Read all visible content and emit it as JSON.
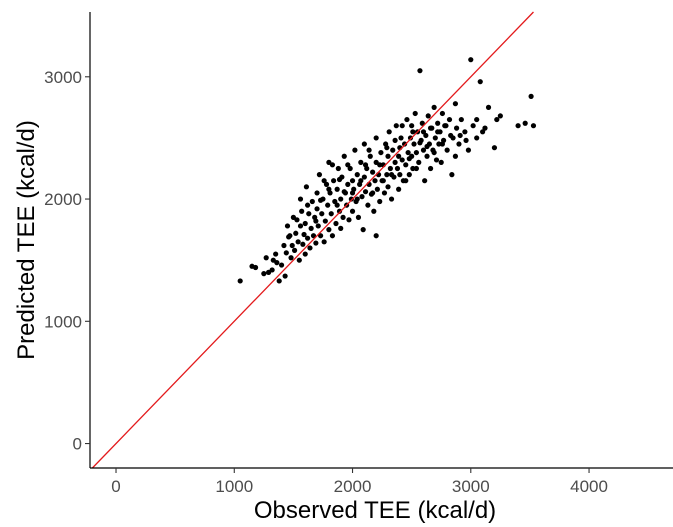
{
  "chart_data": {
    "type": "scatter",
    "title": "",
    "xlabel": "Observed TEE (kcal/d)",
    "ylabel": "Predicted TEE (kcal/d)",
    "xlim": [
      -220,
      4600
    ],
    "ylim": [
      -200,
      3530
    ],
    "x_ticks": [
      0,
      1000,
      2000,
      3000,
      4000
    ],
    "x_tick_labels": [
      "0",
      "1000",
      "2000",
      "3000",
      "4000"
    ],
    "y_ticks": [
      0,
      1000,
      2000,
      3000
    ],
    "y_tick_labels": [
      "0",
      "1000",
      "2000",
      "3000"
    ],
    "grid": false,
    "point_color": "#000000",
    "reference_line": {
      "type": "identity",
      "slope": 1,
      "intercept": 0,
      "color": "#e31a1c"
    },
    "series": [
      {
        "points": [
          [
            1050,
            1330
          ],
          [
            1180,
            1440
          ],
          [
            1250,
            1390
          ],
          [
            1290,
            1400
          ],
          [
            1320,
            1420
          ],
          [
            1330,
            1500
          ],
          [
            1350,
            1550
          ],
          [
            1380,
            1330
          ],
          [
            1400,
            1460
          ],
          [
            1420,
            1620
          ],
          [
            1430,
            1370
          ],
          [
            1440,
            1560
          ],
          [
            1450,
            1780
          ],
          [
            1460,
            1690
          ],
          [
            1480,
            1520
          ],
          [
            1490,
            1620
          ],
          [
            1500,
            1850
          ],
          [
            1510,
            1580
          ],
          [
            1520,
            1720
          ],
          [
            1540,
            1650
          ],
          [
            1550,
            1500
          ],
          [
            1560,
            1780
          ],
          [
            1570,
            1900
          ],
          [
            1580,
            1630
          ],
          [
            1590,
            1710
          ],
          [
            1600,
            1550
          ],
          [
            1600,
            1800
          ],
          [
            1610,
            2100
          ],
          [
            1620,
            1680
          ],
          [
            1630,
            1880
          ],
          [
            1640,
            1600
          ],
          [
            1650,
            1760
          ],
          [
            1660,
            1980
          ],
          [
            1670,
            1700
          ],
          [
            1680,
            1850
          ],
          [
            1690,
            1640
          ],
          [
            1700,
            1920
          ],
          [
            1700,
            2050
          ],
          [
            1710,
            1780
          ],
          [
            1720,
            2200
          ],
          [
            1730,
            1700
          ],
          [
            1740,
            1880
          ],
          [
            1750,
            2000
          ],
          [
            1760,
            1650
          ],
          [
            1770,
            1820
          ],
          [
            1780,
            2120
          ],
          [
            1790,
            1950
          ],
          [
            1800,
            1750
          ],
          [
            1800,
            2300
          ],
          [
            1810,
            2050
          ],
          [
            1820,
            1880
          ],
          [
            1830,
            1700
          ],
          [
            1840,
            2150
          ],
          [
            1850,
            1980
          ],
          [
            1860,
            1800
          ],
          [
            1870,
            2080
          ],
          [
            1880,
            2250
          ],
          [
            1890,
            1900
          ],
          [
            1900,
            2000
          ],
          [
            1900,
            1760
          ],
          [
            1910,
            2180
          ],
          [
            1920,
            1850
          ],
          [
            1930,
            2350
          ],
          [
            1940,
            2050
          ],
          [
            1950,
            1950
          ],
          [
            1960,
            2120
          ],
          [
            1970,
            1830
          ],
          [
            1980,
            2250
          ],
          [
            1990,
            2000
          ],
          [
            2000,
            2150
          ],
          [
            2000,
            1900
          ],
          [
            2010,
            2080
          ],
          [
            2020,
            2400
          ],
          [
            2030,
            1980
          ],
          [
            2040,
            2200
          ],
          [
            2050,
            1850
          ],
          [
            2060,
            2120
          ],
          [
            2070,
            2300
          ],
          [
            2080,
            2020
          ],
          [
            2090,
            1750
          ],
          [
            2100,
            2180
          ],
          [
            2100,
            2450
          ],
          [
            2110,
            2060
          ],
          [
            2120,
            2250
          ],
          [
            2130,
            1950
          ],
          [
            2140,
            2120
          ],
          [
            2150,
            2350
          ],
          [
            2160,
            2040
          ],
          [
            2170,
            2220
          ],
          [
            2180,
            1900
          ],
          [
            2190,
            2150
          ],
          [
            2200,
            2300
          ],
          [
            2200,
            2500
          ],
          [
            2210,
            2080
          ],
          [
            2220,
            2200
          ],
          [
            2230,
            1980
          ],
          [
            2240,
            2380
          ],
          [
            2250,
            2150
          ],
          [
            2260,
            2280
          ],
          [
            2270,
            2050
          ],
          [
            2280,
            2450
          ],
          [
            2290,
            2200
          ],
          [
            2300,
            2350
          ],
          [
            2300,
            2100
          ],
          [
            2310,
            2550
          ],
          [
            2320,
            2250
          ],
          [
            2330,
            2000
          ],
          [
            2340,
            2400
          ],
          [
            2350,
            2180
          ],
          [
            2360,
            2300
          ],
          [
            2370,
            2600
          ],
          [
            2380,
            2250
          ],
          [
            2390,
            2080
          ],
          [
            2400,
            2420
          ],
          [
            2400,
            2200
          ],
          [
            2410,
            2500
          ],
          [
            2420,
            2320
          ],
          [
            2430,
            2150
          ],
          [
            2440,
            2450
          ],
          [
            2450,
            2280
          ],
          [
            2460,
            2650
          ],
          [
            2470,
            2380
          ],
          [
            2480,
            2200
          ],
          [
            2490,
            2500
          ],
          [
            2500,
            2350
          ],
          [
            2500,
            2600
          ],
          [
            2510,
            2250
          ],
          [
            2520,
            2450
          ],
          [
            2530,
            2700
          ],
          [
            2540,
            2380
          ],
          [
            2550,
            2550
          ],
          [
            2560,
            2300
          ],
          [
            2570,
            3050
          ],
          [
            2580,
            2480
          ],
          [
            2590,
            2620
          ],
          [
            2600,
            2400
          ],
          [
            2610,
            2150
          ],
          [
            2620,
            2520
          ],
          [
            2630,
            2350
          ],
          [
            2640,
            2680
          ],
          [
            2650,
            2450
          ],
          [
            2660,
            2250
          ],
          [
            2670,
            2580
          ],
          [
            2680,
            2400
          ],
          [
            2690,
            2750
          ],
          [
            2700,
            2500
          ],
          [
            2710,
            2320
          ],
          [
            2720,
            2620
          ],
          [
            2730,
            2450
          ],
          [
            2740,
            2550
          ],
          [
            2750,
            2300
          ],
          [
            2760,
            2700
          ],
          [
            2770,
            2480
          ],
          [
            2780,
            2600
          ],
          [
            2800,
            2400
          ],
          [
            2820,
            2650
          ],
          [
            2840,
            2200
          ],
          [
            2850,
            2500
          ],
          [
            2870,
            2780
          ],
          [
            2880,
            2580
          ],
          [
            2900,
            2450
          ],
          [
            2920,
            2650
          ],
          [
            2950,
            2550
          ],
          [
            2980,
            2400
          ],
          [
            3000,
            3140
          ],
          [
            3020,
            2600
          ],
          [
            3050,
            2500
          ],
          [
            3080,
            2960
          ],
          [
            3100,
            2550
          ],
          [
            3150,
            2750
          ],
          [
            3200,
            2420
          ],
          [
            3220,
            2650
          ],
          [
            3250,
            2680
          ],
          [
            3400,
            2600
          ],
          [
            3460,
            2620
          ],
          [
            3510,
            2840
          ],
          [
            3530,
            2600
          ],
          [
            1150,
            1450
          ],
          [
            1270,
            1520
          ],
          [
            1360,
            1480
          ],
          [
            1470,
            1700
          ],
          [
            1530,
            1830
          ],
          [
            1560,
            2000
          ],
          [
            1620,
            1950
          ],
          [
            1690,
            1820
          ],
          [
            1730,
            1990
          ],
          [
            1760,
            2150
          ],
          [
            1800,
            2080
          ],
          [
            1830,
            2280
          ],
          [
            1870,
            1950
          ],
          [
            1890,
            2160
          ],
          [
            1930,
            2060
          ],
          [
            1960,
            2280
          ],
          [
            2000,
            2050
          ],
          [
            2040,
            2000
          ],
          [
            2070,
            2150
          ],
          [
            2110,
            2280
          ],
          [
            2140,
            2400
          ],
          [
            2170,
            2050
          ],
          [
            2200,
            1700
          ],
          [
            2230,
            2280
          ],
          [
            2260,
            2150
          ],
          [
            2290,
            2420
          ],
          [
            2330,
            2200
          ],
          [
            2360,
            2480
          ],
          [
            2390,
            2350
          ],
          [
            2420,
            2600
          ],
          [
            2450,
            2150
          ],
          [
            2480,
            2330
          ],
          [
            2510,
            2550
          ],
          [
            2540,
            2250
          ],
          [
            2570,
            2460
          ],
          [
            2600,
            2550
          ],
          [
            2630,
            2430
          ],
          [
            2660,
            2580
          ],
          [
            2690,
            2380
          ],
          [
            2720,
            2550
          ],
          [
            2760,
            2450
          ],
          [
            2790,
            2600
          ],
          [
            2830,
            2520
          ],
          [
            2870,
            2350
          ],
          [
            2910,
            2520
          ],
          [
            2960,
            2480
          ],
          [
            3050,
            2650
          ],
          [
            3120,
            2580
          ]
        ]
      }
    ]
  }
}
